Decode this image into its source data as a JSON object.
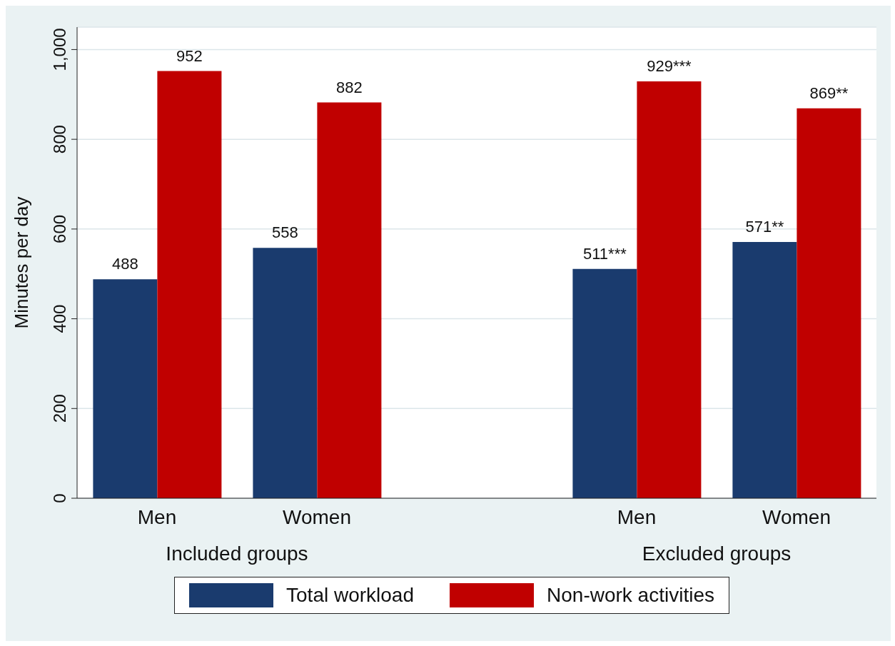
{
  "chart_data": {
    "type": "bar",
    "ylabel": "Minutes per day",
    "categories": [
      "Men",
      "Women",
      "Men",
      "Women"
    ],
    "series": [
      {
        "name": "Total workload",
        "color": "#1a3b6e",
        "values": [
          488,
          558,
          511,
          571
        ],
        "value_labels": [
          "488",
          "558",
          "511***",
          "571**"
        ]
      },
      {
        "name": "Non-work activities",
        "color": "#c00000",
        "values": [
          952,
          882,
          929,
          869
        ],
        "value_labels": [
          "952",
          "882",
          "929***",
          "869**"
        ]
      }
    ],
    "ylim": [
      0,
      1050
    ],
    "yticks": [
      0,
      200,
      400,
      600,
      800,
      {
        "value": 1000,
        "label": "1,000"
      }
    ],
    "grid": "y",
    "legend": "bottom",
    "annotations": [
      "Included groups",
      "Excluded groups"
    ]
  }
}
